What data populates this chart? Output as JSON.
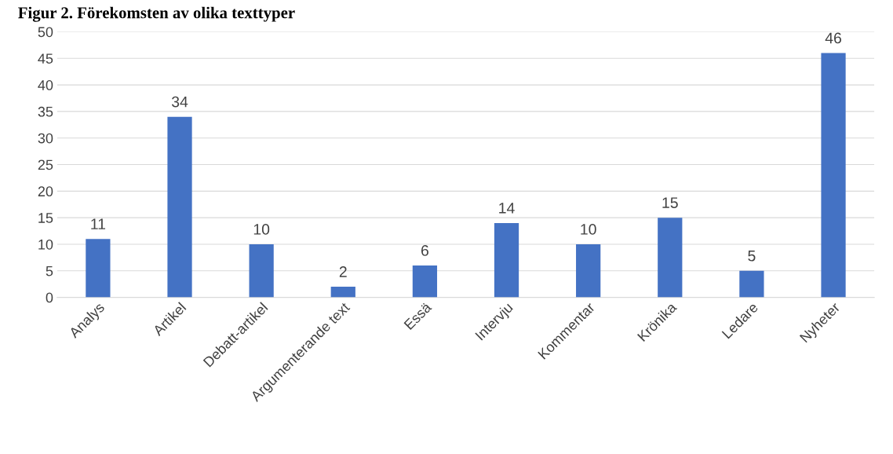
{
  "chart_data": {
    "type": "bar",
    "title": "Figur 2. Förekomsten av olika texttyper",
    "categories": [
      "Analys",
      "Artikel",
      "Debatt-artikel",
      "Argumenterande text",
      "Essä",
      "Intervju",
      "Kommentar",
      "Krönika",
      "Ledare",
      "Nyheter"
    ],
    "values": [
      11,
      34,
      10,
      2,
      6,
      14,
      10,
      15,
      5,
      46
    ],
    "color": "#4472c4",
    "ylim": [
      0,
      50
    ],
    "yticks": [
      0,
      5,
      10,
      15,
      20,
      25,
      30,
      35,
      40,
      45,
      50
    ],
    "grid": "y",
    "data_labels": true
  }
}
